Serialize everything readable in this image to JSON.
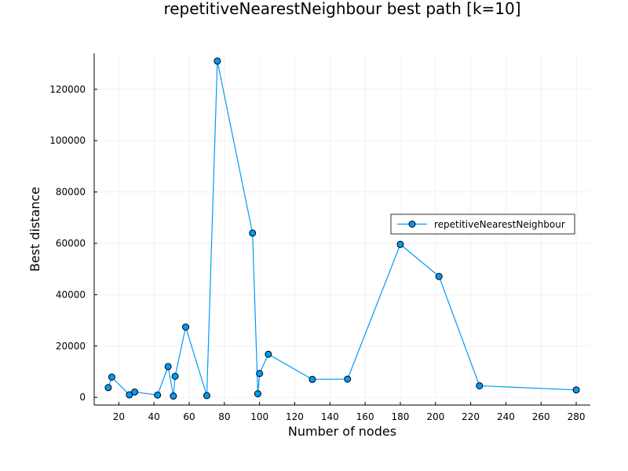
{
  "chart_data": {
    "type": "line",
    "title": "repetitiveNearestNeighbour best path [k=10]",
    "xlabel": "Number of nodes",
    "ylabel": "Best distance",
    "xlim": [
      6,
      288
    ],
    "ylim": [
      -3000,
      134000
    ],
    "x_ticks": [
      20,
      40,
      60,
      80,
      100,
      120,
      140,
      160,
      180,
      200,
      220,
      240,
      260,
      280
    ],
    "y_ticks": [
      0,
      20000,
      40000,
      60000,
      80000,
      100000,
      120000
    ],
    "grid": true,
    "legend_position": "right",
    "colors": {
      "series": "#009AFA",
      "marker_edge": "#000000",
      "grid": "#EBEBEB",
      "axis": "#000000"
    },
    "series": [
      {
        "name": "repetitiveNearestNeighbour",
        "marker": "circle",
        "points": [
          [
            14,
            3800
          ],
          [
            16,
            7900
          ],
          [
            26,
            1000
          ],
          [
            29,
            2100
          ],
          [
            42,
            900
          ],
          [
            48,
            12000
          ],
          [
            51,
            500
          ],
          [
            52,
            8200
          ],
          [
            58,
            27400
          ],
          [
            70,
            700
          ],
          [
            76,
            131000
          ],
          [
            96,
            64000
          ],
          [
            99,
            1400
          ],
          [
            100,
            9300
          ],
          [
            105,
            16800
          ],
          [
            130,
            7000
          ],
          [
            150,
            7100
          ],
          [
            180,
            59600
          ],
          [
            202,
            47100
          ],
          [
            225,
            4500
          ],
          [
            280,
            2900
          ]
        ]
      }
    ]
  }
}
